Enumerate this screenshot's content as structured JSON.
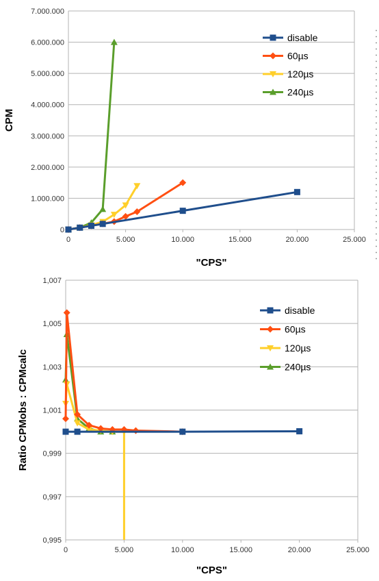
{
  "chart_data": [
    {
      "type": "line",
      "xlabel": "\"CPS\"",
      "ylabel": "CPM",
      "xlim": [
        0,
        25000
      ],
      "ylim": [
        0,
        7000000
      ],
      "grid": true,
      "legend_position": "top-right",
      "x_ticks": [
        "0",
        "5.000",
        "10.000",
        "15.000",
        "20.000",
        "25.000"
      ],
      "y_ticks": [
        "0",
        "1.000.000",
        "2.000.000",
        "3.000.000",
        "4.000.000",
        "5.000.000",
        "6.000.000",
        "7.000.000"
      ],
      "series": [
        {
          "name": "disable",
          "color": "#1f4e8c",
          "marker": "square",
          "x": [
            0,
            1000,
            2000,
            3000,
            10000,
            20000
          ],
          "y": [
            0,
            60000,
            120000,
            180000,
            600000,
            1200000
          ]
        },
        {
          "name": "60µs",
          "color": "#ff4f12",
          "marker": "diamond",
          "x": [
            0,
            1000,
            2000,
            3000,
            4000,
            5000,
            6000,
            10000
          ],
          "y": [
            0,
            60000,
            122000,
            185000,
            255000,
            420000,
            570000,
            1500000
          ]
        },
        {
          "name": "120µs",
          "color": "#ffcf2a",
          "marker": "triangle-down",
          "x": [
            0,
            1000,
            2000,
            3000,
            4000,
            5000,
            6000
          ],
          "y": [
            0,
            60000,
            140000,
            250000,
            480000,
            780000,
            1400000
          ]
        },
        {
          "name": "240µs",
          "color": "#5a9e2b",
          "marker": "triangle-up",
          "x": [
            0,
            1000,
            2000,
            3000,
            4000
          ],
          "y": [
            0,
            60000,
            220000,
            650000,
            6000000
          ]
        }
      ]
    },
    {
      "type": "line",
      "xlabel": "\"CPS\"",
      "ylabel": "Ratio CPMobs : CPMcalc",
      "xlim": [
        0,
        25000
      ],
      "ylim": [
        0.995,
        1.007
      ],
      "grid": true,
      "legend_position": "top-right",
      "x_ticks": [
        "0",
        "5.000",
        "10.000",
        "15.000",
        "20.000",
        "25.000"
      ],
      "y_ticks": [
        "0,995",
        "0,997",
        "0,999",
        "1,001",
        "1,003",
        "1,005",
        "1,007"
      ],
      "series": [
        {
          "name": "disable",
          "color": "#1f4e8c",
          "marker": "square",
          "x": [
            0,
            1000,
            10000,
            20000
          ],
          "y": [
            1.0,
            1.0,
            1.0,
            1.00002
          ]
        },
        {
          "name": "60µs",
          "color": "#ff4f12",
          "marker": "diamond",
          "x": [
            0,
            100,
            1000,
            2000,
            3000,
            4000,
            5000,
            6000,
            10000
          ],
          "y": [
            1.0006,
            1.0055,
            1.0008,
            1.0003,
            1.00015,
            1.0001,
            1.0001,
            1.00005,
            1.0
          ]
        },
        {
          "name": "120µs",
          "color": "#ffcf2a",
          "marker": "triangle-down",
          "x": [
            0,
            100,
            1000,
            2000,
            3000,
            4000,
            5000,
            5000
          ],
          "y": [
            1.0013,
            1.0022,
            1.0004,
            1.0001,
            1.00005,
            1.0,
            1.0,
            0.995
          ]
        },
        {
          "name": "240µs",
          "color": "#5a9e2b",
          "marker": "triangle-up",
          "x": [
            0,
            100,
            1000,
            2000,
            3000,
            4000
          ],
          "y": [
            1.0024,
            1.0045,
            1.0006,
            1.00015,
            1.0,
            1.0
          ]
        }
      ]
    }
  ]
}
